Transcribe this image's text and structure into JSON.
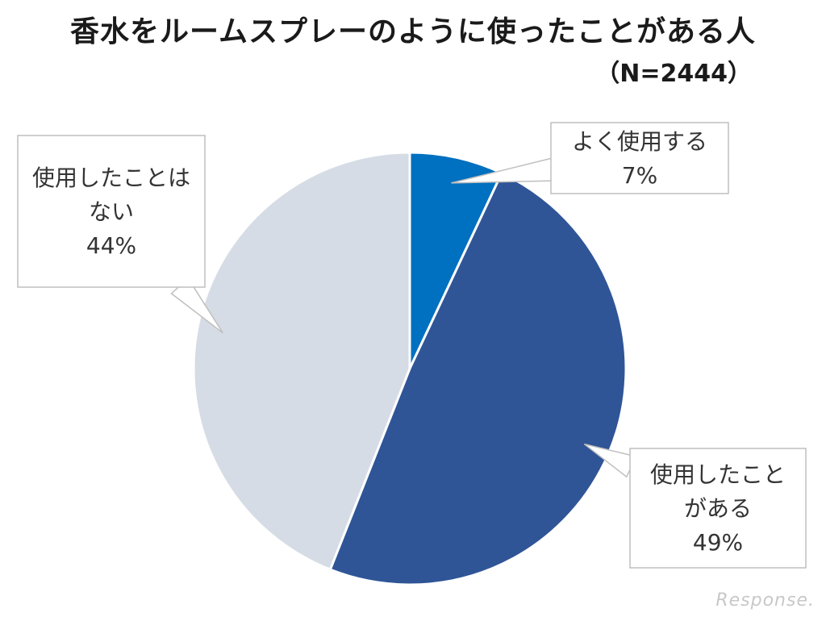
{
  "chart_data": {
    "type": "pie",
    "title": "香水をルームスプレーのように使ったことがある人",
    "subtitle": "（N=2444）",
    "slices": [
      {
        "label": [
          "よく使用する"
        ],
        "value": 7,
        "value_label": "7%",
        "color": "#0070C0"
      },
      {
        "label": [
          "使用したこと",
          "がある"
        ],
        "value": 49,
        "value_label": "49%",
        "color": "#2F5597"
      },
      {
        "label": [
          "使用したことは",
          "ない"
        ],
        "value": 44,
        "value_label": "44%",
        "color": "#D6DCE5"
      }
    ],
    "start_angle": "12 o'clock",
    "direction": "clockwise",
    "legend": "none (callout labels)"
  },
  "watermark": "Response."
}
